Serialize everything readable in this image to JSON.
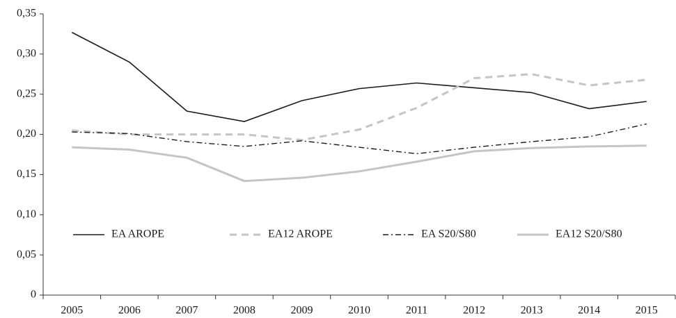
{
  "chart_data": {
    "type": "line",
    "categories": [
      "2005",
      "2006",
      "2007",
      "2008",
      "2009",
      "2010",
      "2011",
      "2012",
      "2013",
      "2014",
      "2015"
    ],
    "series": [
      {
        "name": "EA AROPE",
        "color": "#1a1a1a",
        "dash": "none",
        "width": 1.6,
        "values": [
          0.327,
          0.29,
          0.229,
          0.216,
          0.242,
          0.257,
          0.264,
          0.258,
          0.252,
          0.232,
          0.241
        ]
      },
      {
        "name": "EA12 AROPE",
        "color": "#c4c4c4",
        "dash": "10,7",
        "width": 3,
        "values": [
          0.205,
          0.2,
          0.2,
          0.2,
          0.193,
          0.206,
          0.233,
          0.27,
          0.275,
          0.261,
          0.268
        ]
      },
      {
        "name": "EA S20/S80",
        "color": "#1a1a1a",
        "dash": "8,4,2,4",
        "width": 1.4,
        "values": [
          0.203,
          0.201,
          0.191,
          0.185,
          0.192,
          0.184,
          0.176,
          0.184,
          0.191,
          0.197,
          0.213
        ]
      },
      {
        "name": "EA12 S20/S80",
        "color": "#c4c4c4",
        "dash": "none",
        "width": 3,
        "values": [
          0.184,
          0.181,
          0.171,
          0.142,
          0.146,
          0.154,
          0.166,
          0.179,
          0.183,
          0.185,
          0.186
        ]
      }
    ],
    "ylim": [
      0,
      0.35
    ],
    "yticks": [
      0,
      {
        "value": 0.05,
        "label": "0,05"
      },
      {
        "value": 0.1,
        "label": "0,10"
      },
      {
        "value": 0.15,
        "label": "0,15"
      },
      {
        "value": 0.2,
        "label": "0,20"
      },
      {
        "value": 0.25,
        "label": "0,25"
      },
      {
        "value": 0.3,
        "label": "0,30"
      },
      {
        "value": 0.35,
        "label": "0,35"
      }
    ],
    "grid": false,
    "legend": "inside-bottom"
  }
}
